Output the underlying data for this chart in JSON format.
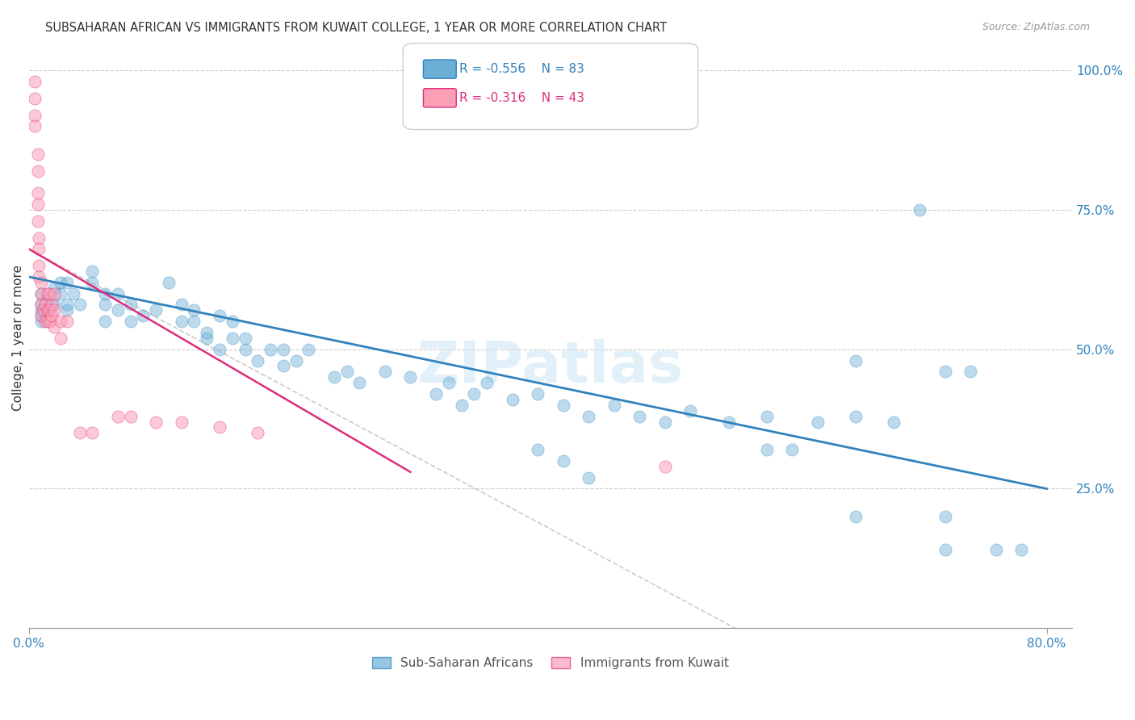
{
  "title": "SUBSAHARAN AFRICAN VS IMMIGRANTS FROM KUWAIT COLLEGE, 1 YEAR OR MORE CORRELATION CHART",
  "source": "Source: ZipAtlas.com",
  "xlabel_bottom": "",
  "ylabel": "College, 1 year or more",
  "x_tick_labels": [
    "0.0%",
    "80.0%"
  ],
  "y_tick_labels": [
    "100.0%",
    "75.0%",
    "50.0%",
    "25.0%"
  ],
  "legend_entries": [
    {
      "label": "Sub-Saharan Africans",
      "color": "#a8c4e0",
      "R": "-0.556",
      "N": "83"
    },
    {
      "label": "Immigrants from Kuwait",
      "color": "#f0a0b0",
      "R": "-0.316",
      "N": "43"
    }
  ],
  "blue_scatter_x": [
    0.01,
    0.01,
    0.01,
    0.01,
    0.01,
    0.015,
    0.015,
    0.02,
    0.02,
    0.025,
    0.025,
    0.03,
    0.03,
    0.03,
    0.035,
    0.04,
    0.05,
    0.05,
    0.06,
    0.06,
    0.06,
    0.07,
    0.07,
    0.08,
    0.08,
    0.09,
    0.1,
    0.11,
    0.12,
    0.12,
    0.13,
    0.13,
    0.14,
    0.14,
    0.15,
    0.15,
    0.16,
    0.16,
    0.17,
    0.17,
    0.18,
    0.19,
    0.2,
    0.2,
    0.21,
    0.22,
    0.24,
    0.25,
    0.26,
    0.28,
    0.3,
    0.32,
    0.33,
    0.34,
    0.35,
    0.36,
    0.38,
    0.4,
    0.42,
    0.44,
    0.46,
    0.48,
    0.5,
    0.52,
    0.55,
    0.58,
    0.62,
    0.65,
    0.68,
    0.7,
    0.72,
    0.74,
    0.76,
    0.78,
    0.65,
    0.72,
    0.58,
    0.6,
    0.4,
    0.42,
    0.44,
    0.65,
    0.72
  ],
  "blue_scatter_y": [
    0.6,
    0.58,
    0.55,
    0.57,
    0.56,
    0.59,
    0.57,
    0.61,
    0.58,
    0.6,
    0.62,
    0.57,
    0.58,
    0.62,
    0.6,
    0.58,
    0.62,
    0.64,
    0.6,
    0.58,
    0.55,
    0.6,
    0.57,
    0.58,
    0.55,
    0.56,
    0.57,
    0.62,
    0.58,
    0.55,
    0.55,
    0.57,
    0.52,
    0.53,
    0.5,
    0.56,
    0.52,
    0.55,
    0.5,
    0.52,
    0.48,
    0.5,
    0.47,
    0.5,
    0.48,
    0.5,
    0.45,
    0.46,
    0.44,
    0.46,
    0.45,
    0.42,
    0.44,
    0.4,
    0.42,
    0.44,
    0.41,
    0.42,
    0.4,
    0.38,
    0.4,
    0.38,
    0.37,
    0.39,
    0.37,
    0.38,
    0.37,
    0.38,
    0.37,
    0.75,
    0.46,
    0.46,
    0.14,
    0.14,
    0.2,
    0.2,
    0.32,
    0.32,
    0.32,
    0.3,
    0.27,
    0.48,
    0.14
  ],
  "pink_scatter_x": [
    0.005,
    0.005,
    0.005,
    0.005,
    0.007,
    0.007,
    0.007,
    0.007,
    0.007,
    0.008,
    0.008,
    0.008,
    0.008,
    0.01,
    0.01,
    0.01,
    0.01,
    0.012,
    0.013,
    0.013,
    0.015,
    0.015,
    0.015,
    0.016,
    0.016,
    0.017,
    0.018,
    0.018,
    0.02,
    0.02,
    0.02,
    0.025,
    0.025,
    0.03,
    0.04,
    0.05,
    0.07,
    0.08,
    0.1,
    0.12,
    0.15,
    0.18,
    0.5
  ],
  "pink_scatter_y": [
    0.98,
    0.95,
    0.92,
    0.9,
    0.85,
    0.82,
    0.78,
    0.76,
    0.73,
    0.7,
    0.68,
    0.65,
    0.63,
    0.62,
    0.6,
    0.58,
    0.56,
    0.57,
    0.58,
    0.55,
    0.6,
    0.57,
    0.55,
    0.6,
    0.57,
    0.55,
    0.58,
    0.56,
    0.6,
    0.57,
    0.54,
    0.55,
    0.52,
    0.55,
    0.35,
    0.35,
    0.38,
    0.38,
    0.37,
    0.37,
    0.36,
    0.35,
    0.29
  ],
  "blue_line_x": [
    0.0,
    0.8
  ],
  "blue_line_y": [
    0.63,
    0.25
  ],
  "pink_line_x": [
    0.0,
    0.3
  ],
  "pink_line_y": [
    0.68,
    0.28
  ],
  "watermark": "ZIPatlas",
  "bg_color": "#ffffff",
  "blue_color": "#6baed6",
  "pink_color": "#fa9fb5",
  "blue_line_color": "#3182bd",
  "pink_line_color": "#de2d7e",
  "title_fontsize": 11,
  "xlim": [
    0.0,
    0.82
  ],
  "ylim": [
    0.0,
    1.04
  ]
}
